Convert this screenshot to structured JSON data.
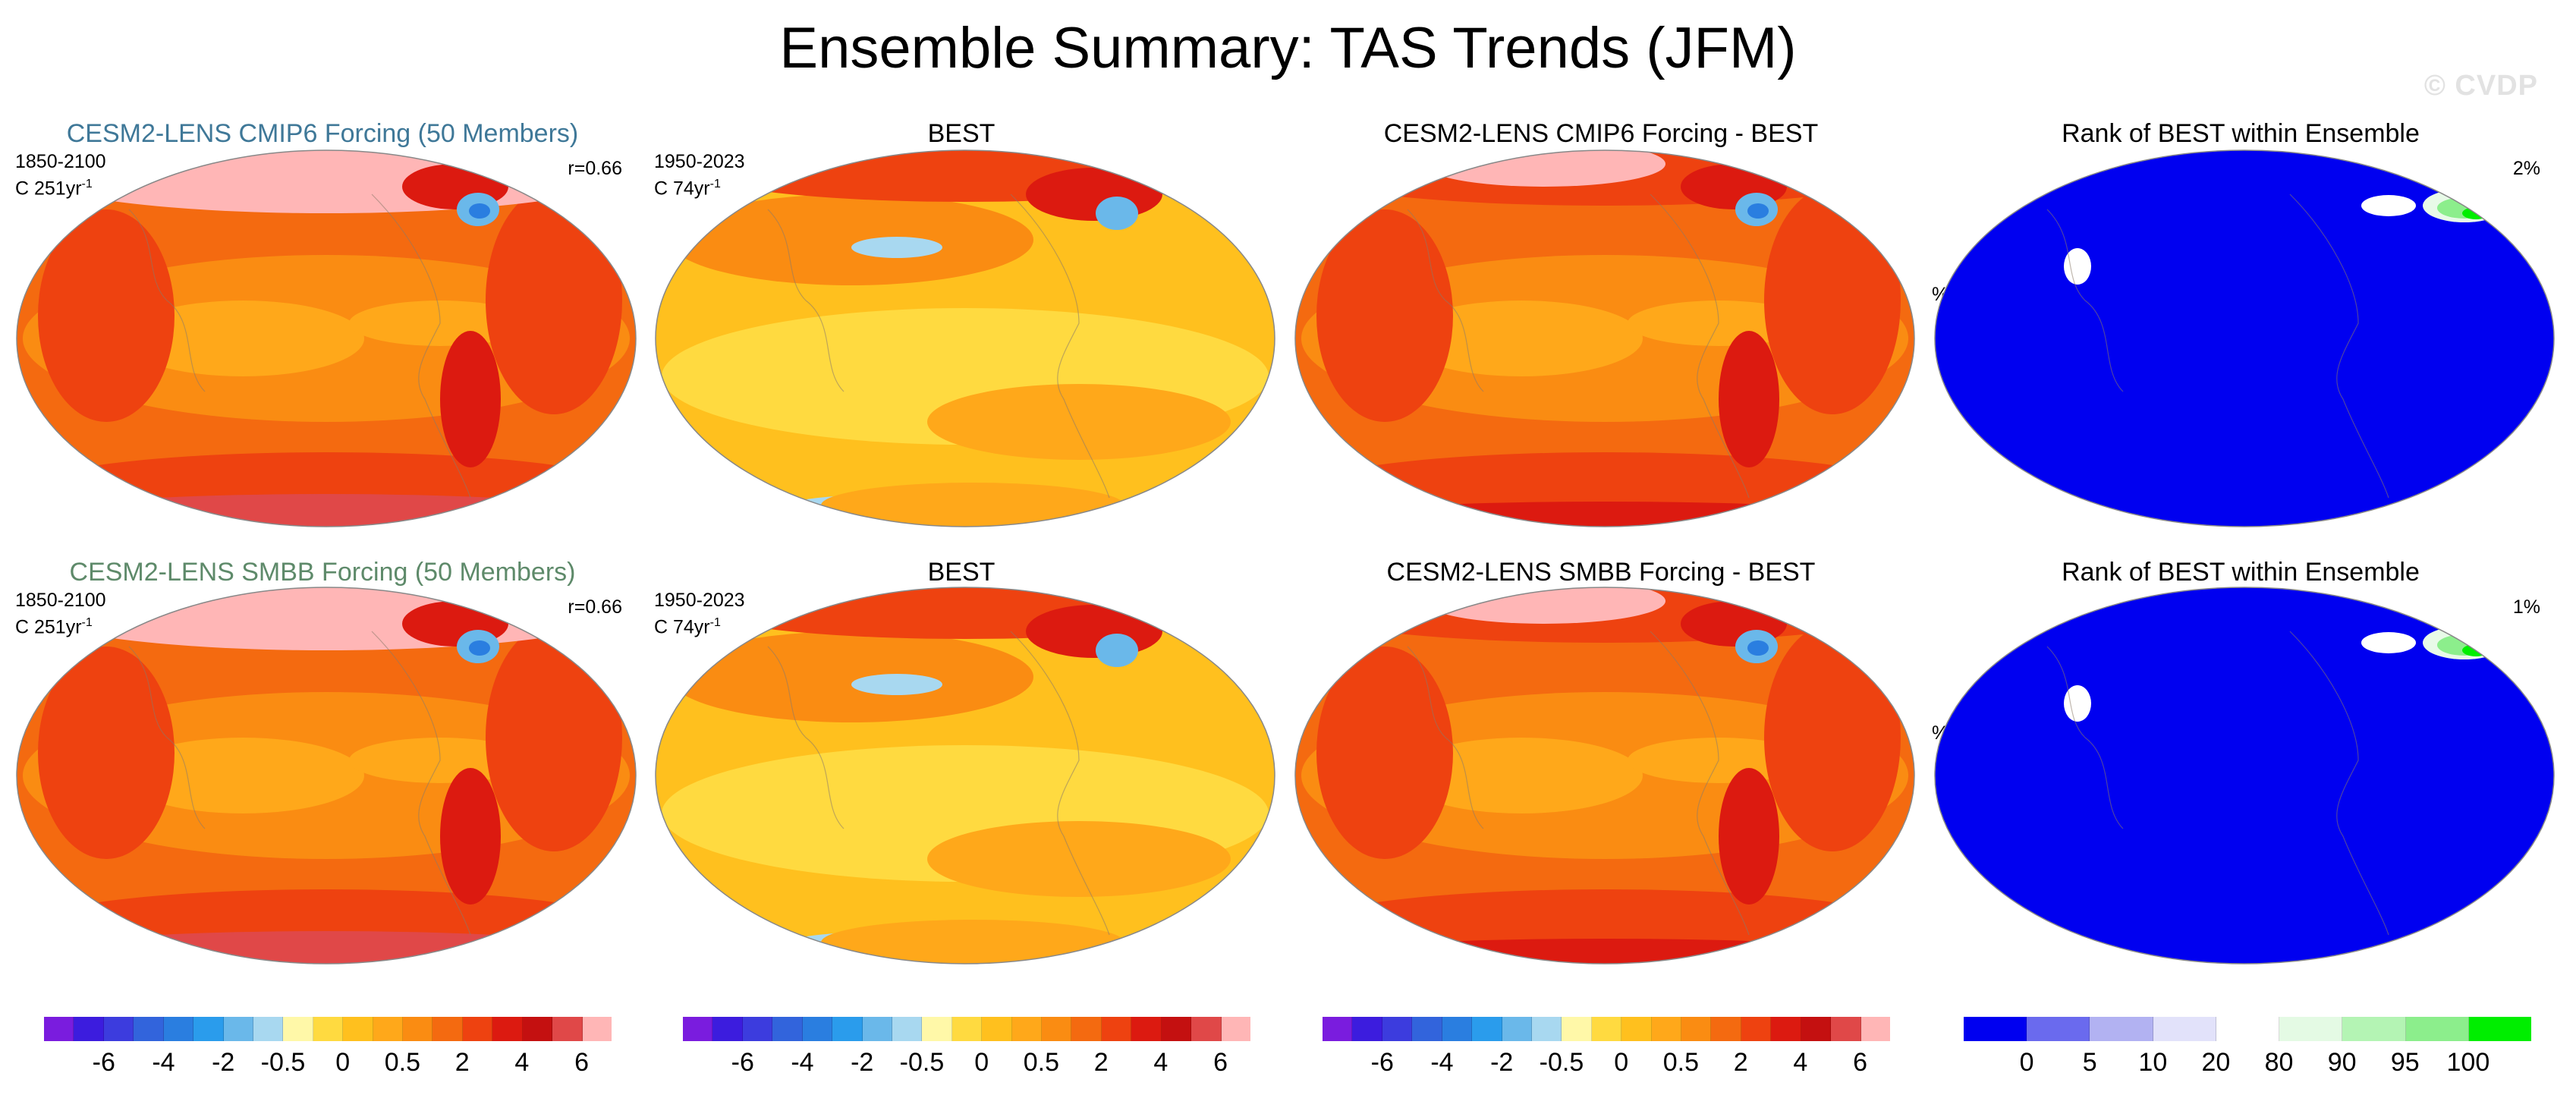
{
  "title": "Ensemble Summary: TAS Trends (JFM)",
  "watermark": "© CVDP",
  "panels": [
    {
      "title": "CESM2-LENS CMIP6 Forcing (50 Members)",
      "period": "1850-2100",
      "trend_prefix": "C 251yr",
      "trend_exp": "-1",
      "corner": "r=0.66",
      "kind": "trend",
      "variant": "model"
    },
    {
      "title": "BEST",
      "period": "1950-2023",
      "trend_prefix": "C 74yr",
      "trend_exp": "-1",
      "corner": "",
      "kind": "trend",
      "variant": "obs"
    },
    {
      "title": "CESM2-LENS CMIP6 Forcing - BEST",
      "period": "",
      "trend_prefix": "",
      "trend_exp": "",
      "corner": "",
      "kind": "trend",
      "variant": "diff"
    },
    {
      "title": "Rank of BEST within Ensemble",
      "period": "",
      "trend_prefix": "",
      "trend_exp": "",
      "corner": "2%",
      "pct": "%",
      "kind": "rank"
    },
    {
      "title": "CESM2-LENS SMBB Forcing (50 Members)",
      "period": "1850-2100",
      "trend_prefix": "C 251yr",
      "trend_exp": "-1",
      "corner": "r=0.66",
      "kind": "trend",
      "variant": "model"
    },
    {
      "title": "BEST",
      "period": "1950-2023",
      "trend_prefix": "C 74yr",
      "trend_exp": "-1",
      "corner": "",
      "kind": "trend",
      "variant": "obs"
    },
    {
      "title": "CESM2-LENS SMBB Forcing - BEST",
      "period": "",
      "trend_prefix": "",
      "trend_exp": "",
      "corner": "",
      "kind": "trend",
      "variant": "diff"
    },
    {
      "title": "Rank of BEST within Ensemble",
      "period": "",
      "trend_prefix": "",
      "trend_exp": "",
      "corner": "1%",
      "pct": "%",
      "kind": "rank"
    }
  ],
  "colorbars": {
    "trend": {
      "colors": [
        "#7a1cde",
        "#3c1cde",
        "#3c3cde",
        "#3264dc",
        "#2a7ee0",
        "#2a9cec",
        "#6ab8ea",
        "#a8d8f0",
        "#fff8a8",
        "#ffda40",
        "#ffc01e",
        "#ffa81a",
        "#fa8c12",
        "#f46a10",
        "#ee4210",
        "#dc1a10",
        "#c41010",
        "#e04848",
        "#ffb6b6"
      ],
      "labels": [
        "-6",
        "-4",
        "-2",
        "-0.5",
        "0",
        "0.5",
        "2",
        "4",
        "6"
      ],
      "label_positions": [
        2,
        4,
        6,
        8,
        10,
        12,
        14,
        16,
        18
      ]
    },
    "rank": {
      "colors": [
        "#0000f0",
        "#6a6aee",
        "#b2b2f2",
        "#e2e2fa",
        "#ffffff",
        "#e4fae4",
        "#b4f4b4",
        "#8cee8c",
        "#00ee00"
      ],
      "labels": [
        "0",
        "5",
        "10",
        "20",
        "80",
        "90",
        "95",
        "100"
      ],
      "label_positions": [
        1,
        2,
        3,
        4,
        5,
        6,
        7,
        8
      ]
    }
  }
}
